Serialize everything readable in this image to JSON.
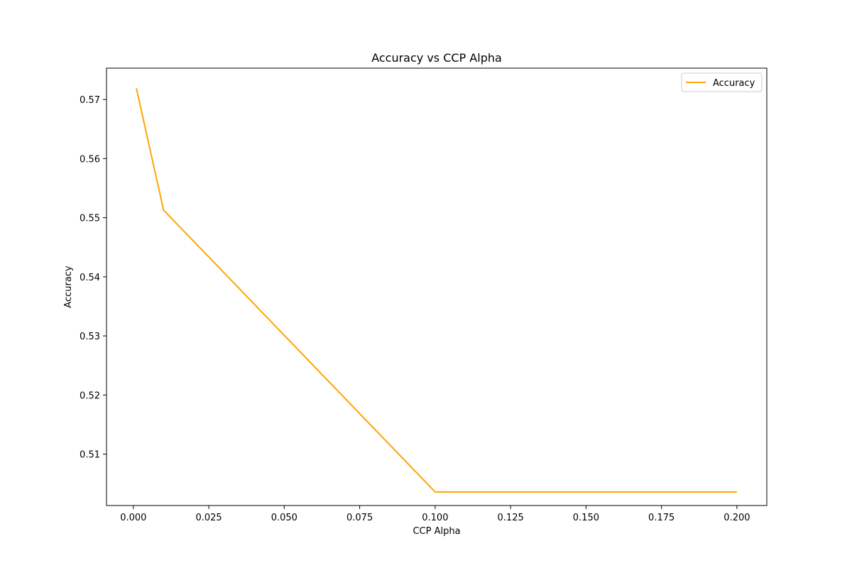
{
  "chart_data": {
    "type": "line",
    "title": "Accuracy vs CCP Alpha",
    "xlabel": "CCP Alpha",
    "ylabel": "Accuracy",
    "xlim": [
      -0.0089,
      0.2099
    ],
    "ylim": [
      0.5013,
      0.5753
    ],
    "x_ticks": [
      "0.000",
      "0.025",
      "0.050",
      "0.075",
      "0.100",
      "0.125",
      "0.150",
      "0.175",
      "0.200"
    ],
    "y_ticks": [
      "0.51",
      "0.52",
      "0.53",
      "0.54",
      "0.55",
      "0.56",
      "0.57"
    ],
    "grid": false,
    "legend_position": "top-right",
    "series": [
      {
        "name": "Accuracy",
        "color": "#ffa500",
        "x": [
          0.001,
          0.01,
          0.1,
          0.2
        ],
        "y": [
          0.5719,
          0.5513,
          0.5036,
          0.5036
        ]
      }
    ]
  }
}
